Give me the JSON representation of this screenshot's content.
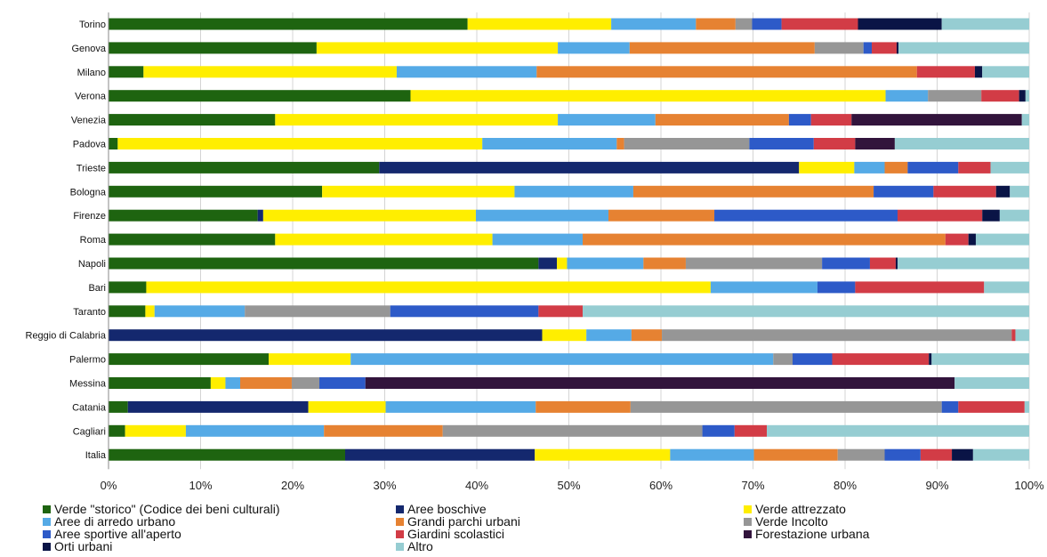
{
  "chart_data": {
    "type": "bar",
    "orientation": "horizontal",
    "stacked": "percent",
    "categories": [
      "Torino",
      "Genova",
      "Milano",
      "Verona",
      "Venezia",
      "Padova",
      "Trieste",
      "Bologna",
      "Firenze",
      "Roma",
      "Napoli",
      "Bari",
      "Taranto",
      "Reggio di Calabria",
      "Palermo",
      "Messina",
      "Catania",
      "Cagliari",
      "Italia"
    ],
    "x_ticks": [
      "0%",
      "10%",
      "20%",
      "30%",
      "40%",
      "50%",
      "60%",
      "70%",
      "80%",
      "90%",
      "100%"
    ],
    "xlim": [
      0,
      100
    ],
    "grid": true,
    "legend_position": "bottom",
    "series": [
      {
        "name": "Verde \"storico\" (Codice dei beni culturali)",
        "color": "#1e6410",
        "values": [
          39,
          22.6,
          3.8,
          32.8,
          18.1,
          1,
          29.4,
          23.2,
          16.2,
          18.1,
          46.7,
          4.1,
          4,
          0,
          17.4,
          11.1,
          2.1,
          1.8,
          25.7
        ]
      },
      {
        "name": "Aree boschive",
        "color": "#14286e",
        "values": [
          0,
          0,
          0,
          0,
          0,
          0,
          45.6,
          0,
          0.6,
          0,
          2,
          0,
          0,
          47.1,
          0,
          0,
          19.6,
          0,
          20.6
        ]
      },
      {
        "name": "Verde attrezzato",
        "color": "#ffee00",
        "values": [
          15.6,
          26.2,
          27.5,
          51.6,
          30.7,
          39.6,
          6,
          20.9,
          23.1,
          23.6,
          1.1,
          61.3,
          1,
          4.8,
          8.9,
          1.6,
          8.4,
          6.6,
          14.7
        ]
      },
      {
        "name": "Aree di arredo urbano",
        "color": "#55aae6",
        "values": [
          9.2,
          7.8,
          15.2,
          4.6,
          10.6,
          14.6,
          3.3,
          12.9,
          14.4,
          9.8,
          8.3,
          11.6,
          9.8,
          4.9,
          45.9,
          1.6,
          16.3,
          15,
          9.1
        ]
      },
      {
        "name": "Grandi parchi urbani",
        "color": "#e68232",
        "values": [
          4.3,
          20.1,
          41.3,
          0,
          14.5,
          0.8,
          2.5,
          26.1,
          11.5,
          39.4,
          4.6,
          0,
          0,
          3.3,
          0,
          5.6,
          10.3,
          12.9,
          9.1
        ]
      },
      {
        "name": "Verde Incolto",
        "color": "#969696",
        "values": [
          1.8,
          5.3,
          0,
          5.8,
          0,
          13.6,
          0,
          0,
          0,
          0,
          14.8,
          0,
          15.8,
          38,
          2.1,
          3,
          33.8,
          28.2,
          5.1
        ]
      },
      {
        "name": "Aree sportive all'aperto",
        "color": "#2d5ac8",
        "values": [
          3.2,
          0.9,
          0,
          0,
          2.4,
          7,
          5.5,
          6.5,
          19.9,
          0,
          5.2,
          4.1,
          16.1,
          0,
          4.3,
          5,
          1.8,
          3.5,
          3.9
        ]
      },
      {
        "name": "Giardini scolastici",
        "color": "#d23c46",
        "values": [
          8.3,
          2.7,
          6.3,
          4.1,
          4.4,
          4.5,
          3.5,
          6.8,
          9.2,
          2.5,
          2.8,
          14,
          4.8,
          0.4,
          10.5,
          0,
          7.2,
          3.5,
          3.4
        ]
      },
      {
        "name": "Forestazione urbana",
        "color": "#32143c",
        "values": [
          0,
          0,
          0,
          0,
          18.5,
          4.3,
          0,
          0,
          0,
          0,
          0,
          0,
          0,
          0,
          0,
          64,
          0,
          0,
          0
        ]
      },
      {
        "name": "Orti urbani",
        "color": "#0a1446",
        "values": [
          9.1,
          0.2,
          0.8,
          0.7,
          0,
          0,
          0,
          1.5,
          1.9,
          0.8,
          0.2,
          0,
          0,
          0,
          0.3,
          0,
          0,
          0,
          2.3
        ]
      },
      {
        "name": "Altro",
        "color": "#96cdd2",
        "values": [
          9.5,
          14.2,
          5.1,
          0.4,
          0.8,
          14.6,
          4.2,
          2.1,
          3.2,
          5.8,
          14.3,
          4.9,
          48.5,
          1.5,
          10.6,
          8.1,
          0.5,
          28.5,
          6.1
        ]
      }
    ]
  }
}
